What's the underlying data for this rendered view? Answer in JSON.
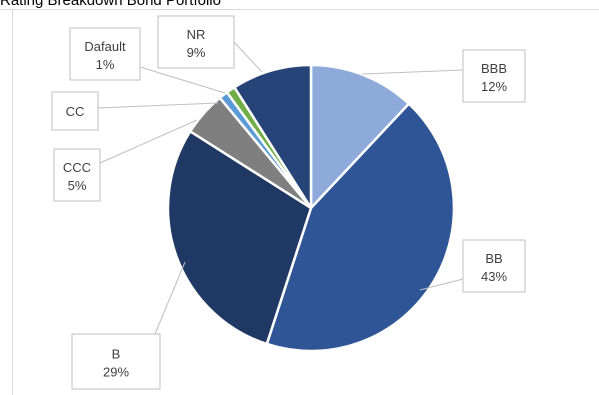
{
  "chart_data": {
    "type": "pie",
    "title": "Rating Breakdown Bond Portfolio",
    "slices": [
      {
        "label": "BBB",
        "value": 12,
        "display": "12%",
        "color": "#8eaadb"
      },
      {
        "label": "BB",
        "value": 43,
        "display": "43%",
        "color": "#2f5597"
      },
      {
        "label": "B",
        "value": 29,
        "display": "29%",
        "color": "#203864"
      },
      {
        "label": "CCC",
        "value": 5,
        "display": "5%",
        "color": "#7f7f7f"
      },
      {
        "label": "CC",
        "value": 1,
        "display": "",
        "color": "#5b9bd5"
      },
      {
        "label": "Dafault",
        "value": 1,
        "display": "1%",
        "color": "#70ad47"
      },
      {
        "label": "NR",
        "value": 9,
        "display": "9%",
        "color": "#264478"
      }
    ],
    "start_angle_deg": 0,
    "direction": "clockwise",
    "legend": "none",
    "data_labels": "callouts"
  }
}
